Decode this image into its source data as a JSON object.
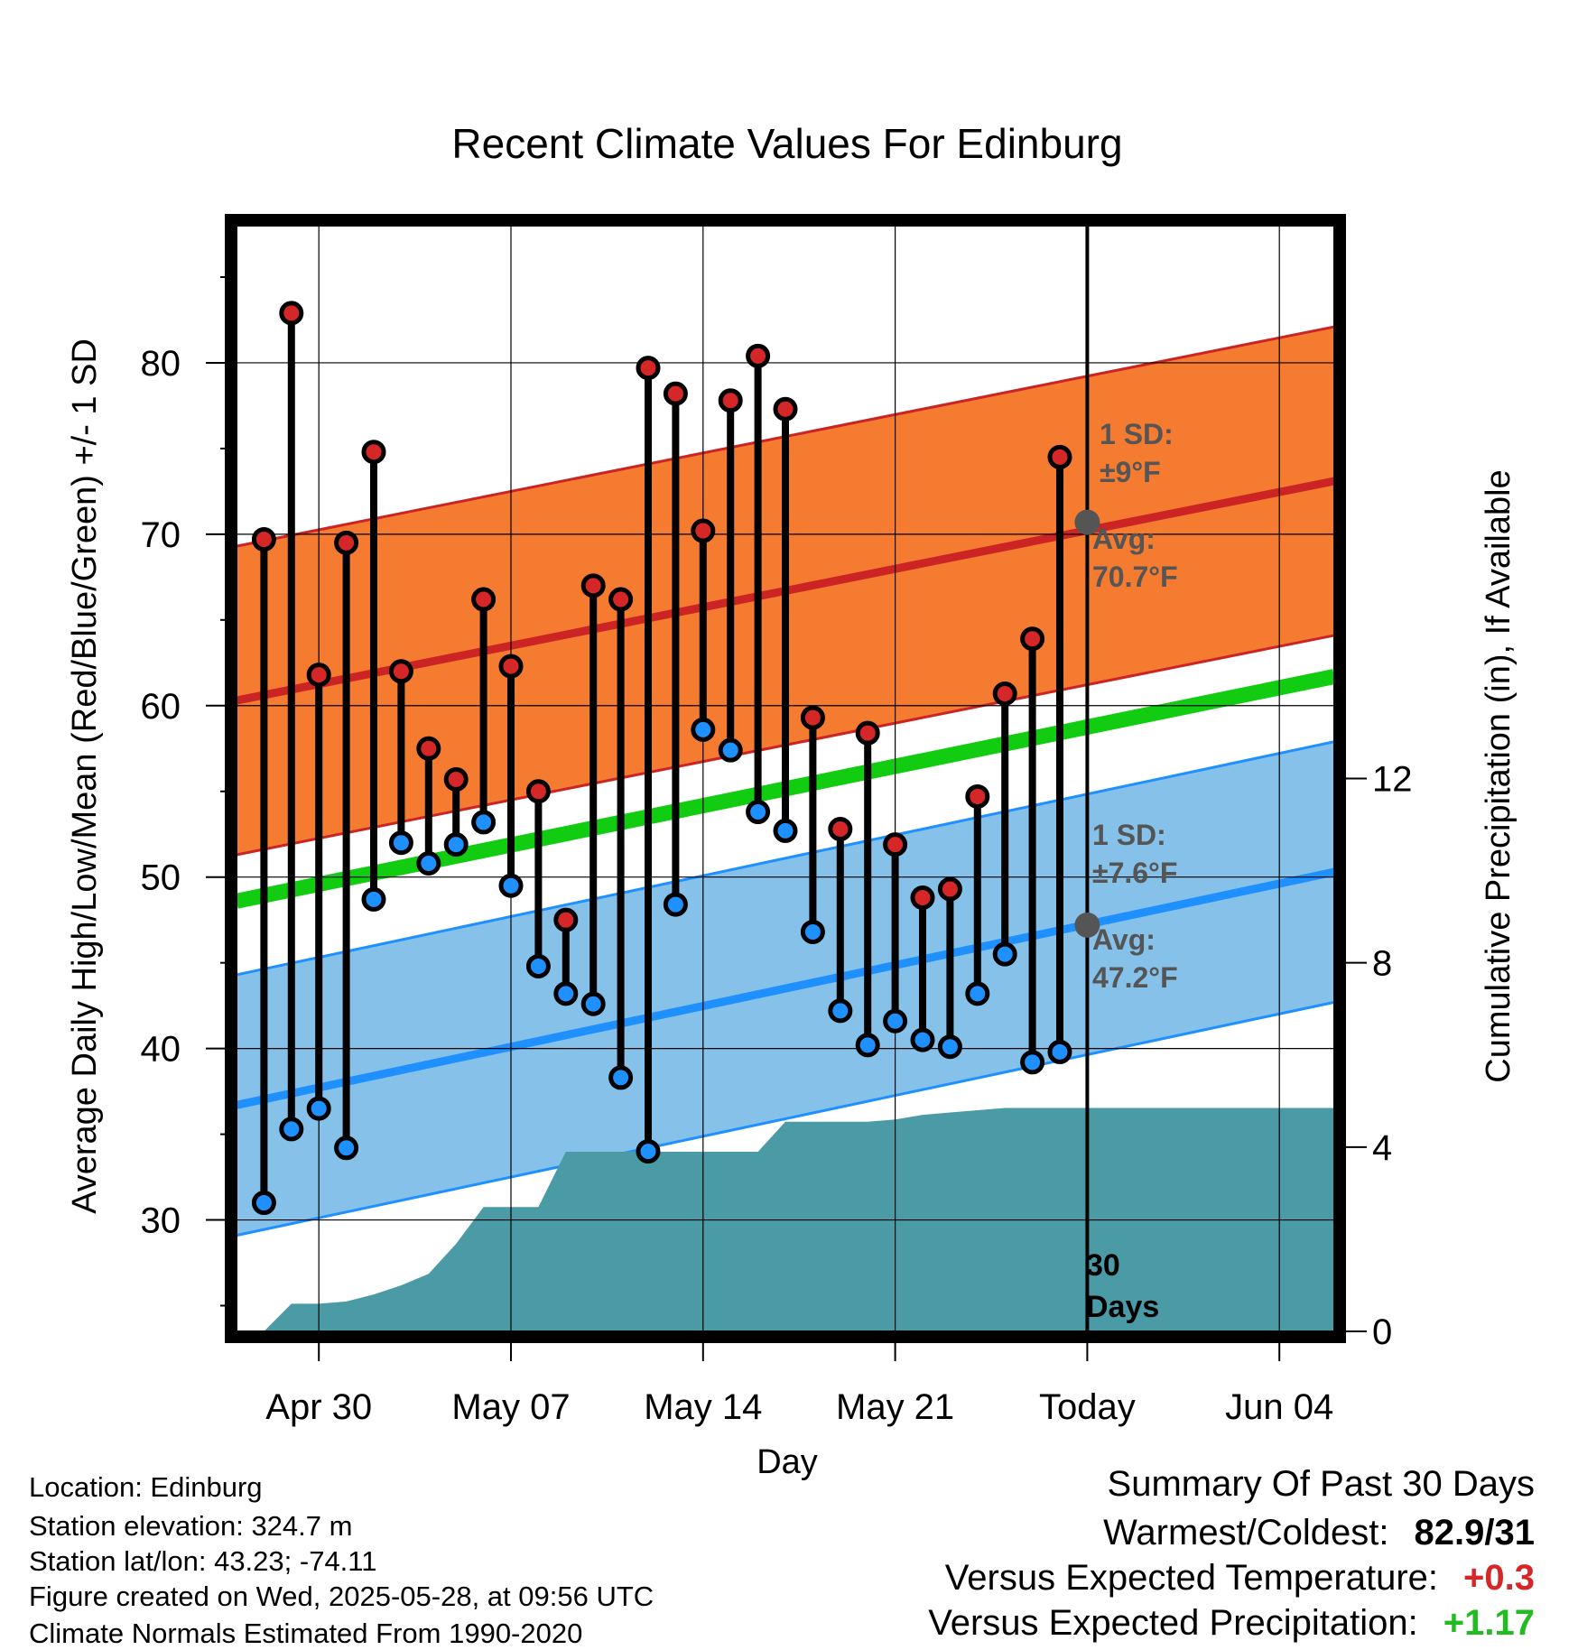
{
  "chart_data": {
    "type": "line",
    "title": "Recent Climate Values For Edinburg",
    "xlabel": "Day",
    "ylabel": "Average Daily High/Low/Mean (Red/Blue/Green) +/- 1 SD",
    "y2label": "Cumulative Precipitation (in), If Available",
    "x_ticks": [
      "Apr 30",
      "May 07",
      "May 14",
      "May 21",
      "Today",
      "Jun 04"
    ],
    "y_ticks": [
      "30",
      "40",
      "50",
      "60",
      "70",
      "80"
    ],
    "y2_ticks": [
      "0",
      "4",
      "8",
      "12"
    ],
    "ylim": [
      23.5,
      88
    ],
    "y2lim": [
      0,
      24
    ],
    "xlim": [
      "2025-04-27",
      "2025-06-06"
    ],
    "grid": true,
    "dates": [
      "2025-04-28",
      "2025-04-29",
      "2025-04-30",
      "2025-05-01",
      "2025-05-02",
      "2025-05-03",
      "2025-05-04",
      "2025-05-05",
      "2025-05-06",
      "2025-05-07",
      "2025-05-08",
      "2025-05-09",
      "2025-05-10",
      "2025-05-11",
      "2025-05-12",
      "2025-05-13",
      "2025-05-14",
      "2025-05-15",
      "2025-05-16",
      "2025-05-17",
      "2025-05-18",
      "2025-05-19",
      "2025-05-20",
      "2025-05-21",
      "2025-05-22",
      "2025-05-23",
      "2025-05-24",
      "2025-05-25",
      "2025-05-26",
      "2025-05-27"
    ],
    "series": [
      {
        "name": "High",
        "color": "#d62728",
        "values": [
          69.7,
          82.9,
          61.8,
          69.5,
          74.8,
          62.0,
          57.5,
          55.7,
          66.2,
          62.3,
          55.0,
          47.5,
          67.0,
          66.2,
          79.7,
          78.2,
          70.2,
          77.8,
          80.4,
          77.3,
          59.3,
          52.8,
          58.4,
          51.9,
          48.8,
          49.3,
          54.7,
          60.7,
          63.9,
          74.5
        ]
      },
      {
        "name": "Low",
        "color": "#1e90ff",
        "values": [
          31.0,
          35.3,
          36.5,
          34.2,
          48.7,
          52.0,
          50.8,
          51.9,
          53.2,
          49.5,
          44.8,
          43.2,
          42.6,
          38.3,
          34.0,
          48.4,
          58.6,
          57.4,
          53.8,
          52.7,
          46.8,
          42.2,
          40.2,
          41.6,
          40.5,
          40.1,
          43.2,
          45.5,
          39.2,
          39.8
        ]
      },
      {
        "name": "Avg High",
        "color": "#cc2424",
        "start": 60.3,
        "end": 73.1,
        "today": 70.7,
        "sd": 9
      },
      {
        "name": "Avg Low",
        "color": "#1e90ff",
        "start": 36.7,
        "end": 50.3,
        "today": 47.2,
        "sd": 7.6
      },
      {
        "name": "Avg Mean",
        "color": "#11cc11",
        "start": 48.6,
        "end": 61.7
      }
    ],
    "precip": {
      "dates": [
        "2025-04-28",
        "2025-04-29",
        "2025-04-30",
        "2025-05-01",
        "2025-05-02",
        "2025-05-03",
        "2025-05-04",
        "2025-05-05",
        "2025-05-06",
        "2025-05-07",
        "2025-05-08",
        "2025-05-09",
        "2025-05-10",
        "2025-05-11",
        "2025-05-12",
        "2025-05-13",
        "2025-05-14",
        "2025-05-15",
        "2025-05-16",
        "2025-05-17",
        "2025-05-18",
        "2025-05-19",
        "2025-05-20",
        "2025-05-21",
        "2025-05-22",
        "2025-05-23",
        "2025-05-24",
        "2025-05-25",
        "2025-05-26",
        "2025-05-27",
        "2025-05-28",
        "2025-06-06"
      ],
      "values": [
        0.0,
        0.6,
        0.6,
        0.65,
        0.8,
        1.0,
        1.25,
        1.9,
        2.7,
        2.7,
        2.7,
        3.9,
        3.9,
        3.9,
        3.9,
        3.9,
        3.9,
        3.9,
        3.9,
        4.55,
        4.55,
        4.55,
        4.55,
        4.6,
        4.7,
        4.75,
        4.8,
        4.85,
        4.85,
        4.85,
        4.85,
        4.85
      ]
    },
    "annotations": {
      "high_sd_label": "1 SD:",
      "high_sd_value": "±9°F",
      "high_avg_label": "Avg:",
      "high_avg_value": "70.7°F",
      "low_sd_label": "1 SD:",
      "low_sd_value": "±7.6°F",
      "low_avg_label": "Avg:",
      "low_avg_value": "47.2°F",
      "window_line1": "30",
      "window_line2": "Days"
    },
    "colors": {
      "high_band": "#f47b30",
      "low_band": "#85c1e9",
      "precip_fill": "#4a9ba6",
      "marker_edge": "#000000",
      "avg_dot": "#555555"
    }
  },
  "info": {
    "location": "Location: Edinburg",
    "elevation": "Station elevation: 324.7 m",
    "latlon": "Station lat/lon: 43.23; -74.11",
    "created": "Figure created on Wed, 2025-05-28, at 09:56 UTC",
    "normals": "Climate Normals Estimated From 1990-2020"
  },
  "summary": {
    "heading": "Summary Of Past 30 Days",
    "warm_cold_label": "Warmest/Coldest:",
    "warm_cold_value": "82.9/31",
    "temp_label": "Versus Expected Temperature:",
    "temp_value": "+0.3",
    "temp_color": "#d62728",
    "precip_label": "Versus Expected Precipitation:",
    "precip_value": "+1.17",
    "precip_color": "#22bb22"
  }
}
